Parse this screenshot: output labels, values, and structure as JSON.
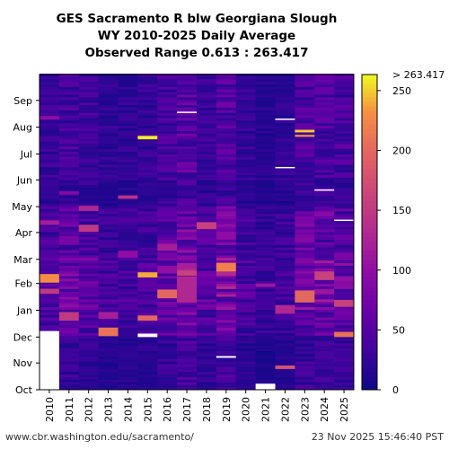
{
  "chart_data": {
    "type": "heatmap",
    "title_lines": [
      "GES Sacramento R blw Georgiana Slough",
      "WY 2010-2025 Daily Average",
      "Observed Range 0.613 : 263.417"
    ],
    "x_categories": [
      "2010",
      "2011",
      "2012",
      "2013",
      "2014",
      "2015",
      "2016",
      "2017",
      "2018",
      "2019",
      "2020",
      "2021",
      "2022",
      "2023",
      "2024",
      "2025"
    ],
    "y_month_labels": [
      "Oct",
      "Nov",
      "Dec",
      "Jan",
      "Feb",
      "Mar",
      "Apr",
      "May",
      "Jun",
      "Jul",
      "Aug",
      "Sep"
    ],
    "colorbar": {
      "min": 0,
      "max": 263.417,
      "ticks": [
        0,
        50,
        100,
        150,
        200,
        250
      ],
      "max_label": "> 263.417",
      "colormap": "plasma"
    },
    "observed_range": [
      0.613,
      263.417
    ],
    "base_level_by_year": [
      22,
      30,
      26,
      18,
      18,
      20,
      30,
      40,
      24,
      38,
      20,
      14,
      18,
      34,
      34,
      30
    ],
    "events": [
      {
        "year": "2010",
        "date": "2010-02-02",
        "days": 10,
        "value": 230
      },
      {
        "year": "2010",
        "date": "2010-01-20",
        "days": 6,
        "value": 150
      },
      {
        "year": "2010",
        "date": "2010-04-10",
        "days": 5,
        "value": 120
      },
      {
        "year": "2010",
        "date": "2010-08-10",
        "days": 4,
        "value": 100
      },
      {
        "year": "2011",
        "date": "2010-12-20",
        "days": 10,
        "value": 150
      },
      {
        "year": "2011",
        "date": "2011-03-20",
        "days": 8,
        "value": 80
      },
      {
        "year": "2011",
        "date": "2011-05-15",
        "days": 4,
        "value": 90
      },
      {
        "year": "2012",
        "date": "2012-04-01",
        "days": 8,
        "value": 150
      },
      {
        "year": "2012",
        "date": "2012-04-25",
        "days": 6,
        "value": 130
      },
      {
        "year": "2013",
        "date": "2012-12-02",
        "days": 10,
        "value": 210
      },
      {
        "year": "2013",
        "date": "2012-12-22",
        "days": 8,
        "value": 120
      },
      {
        "year": "2014",
        "date": "2014-03-03",
        "days": 8,
        "value": 100
      },
      {
        "year": "2014",
        "date": "2014-05-10",
        "days": 4,
        "value": 140
      },
      {
        "year": "2015",
        "date": "2015-07-18",
        "days": 4,
        "value": 260
      },
      {
        "year": "2015",
        "date": "2015-02-08",
        "days": 6,
        "value": 240
      },
      {
        "year": "2015",
        "date": "2014-12-20",
        "days": 6,
        "value": 200
      },
      {
        "year": "2016",
        "date": "2016-01-15",
        "days": 10,
        "value": 200
      },
      {
        "year": "2016",
        "date": "2016-03-10",
        "days": 8,
        "value": 120
      },
      {
        "year": "2017",
        "date": "2017-01-10",
        "days": 30,
        "value": 130
      },
      {
        "year": "2017",
        "date": "2017-02-10",
        "days": 6,
        "value": 160
      },
      {
        "year": "2018",
        "date": "2018-04-05",
        "days": 8,
        "value": 160
      },
      {
        "year": "2019",
        "date": "2019-02-15",
        "days": 10,
        "value": 220
      },
      {
        "year": "2019",
        "date": "2019-03-25",
        "days": 8,
        "value": 100
      },
      {
        "year": "2021",
        "date": "2021-01-28",
        "days": 4,
        "value": 110
      },
      {
        "year": "2022",
        "date": "2021-10-25",
        "days": 4,
        "value": 180
      },
      {
        "year": "2022",
        "date": "2021-12-28",
        "days": 10,
        "value": 130
      },
      {
        "year": "2023",
        "date": "2023-01-10",
        "days": 14,
        "value": 200
      },
      {
        "year": "2023",
        "date": "2023-07-26",
        "days": 3,
        "value": 250
      },
      {
        "year": "2023",
        "date": "2023-07-21",
        "days": 2,
        "value": 240
      },
      {
        "year": "2024",
        "date": "2024-02-05",
        "days": 10,
        "value": 160
      },
      {
        "year": "2025",
        "date": "2024-12-01",
        "days": 6,
        "value": 210
      },
      {
        "year": "2025",
        "date": "2025-01-05",
        "days": 8,
        "value": 160
      }
    ],
    "missing": [
      {
        "year": "2010",
        "date": "2009-10-01",
        "days": 68
      },
      {
        "year": "2015",
        "date": "2014-12-01",
        "days": 4
      },
      {
        "year": "2019",
        "date": "2018-11-07",
        "days": 2
      },
      {
        "year": "2021",
        "date": "2020-10-01",
        "days": 7
      },
      {
        "year": "2017",
        "date": "2017-08-18",
        "days": 1
      },
      {
        "year": "2022",
        "date": "2022-06-15",
        "days": 1
      },
      {
        "year": "2022",
        "date": "2022-08-10",
        "days": 1
      },
      {
        "year": "2024",
        "date": "2024-05-19",
        "days": 1
      },
      {
        "year": "2025",
        "date": "2025-04-15",
        "days": 1
      }
    ]
  },
  "footer": {
    "source": "www.cbr.washington.edu/sacramento/",
    "timestamp": "23 Nov 2025 15:46:40 PST"
  }
}
